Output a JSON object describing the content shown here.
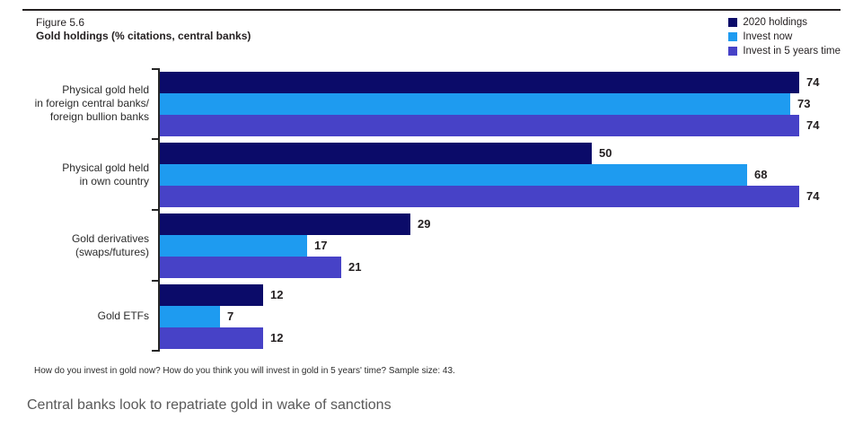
{
  "figure": {
    "label": "Figure 5.6",
    "title": "Gold holdings (% citations, central banks)"
  },
  "legend": [
    {
      "label": "2020 holdings",
      "color": "#0B0B69"
    },
    {
      "label": "Invest now",
      "color": "#1E9BF0"
    },
    {
      "label": "Invest in 5 years time",
      "color": "#4742C7"
    }
  ],
  "chart_data": {
    "type": "bar",
    "orientation": "horizontal",
    "title": "Gold holdings (% citations, central banks)",
    "categories": [
      "Physical gold held\nin foreign central banks/\nforeign bullion banks",
      "Physical gold held\nin own country",
      "Gold derivatives\n(swaps/futures)",
      "Gold ETFs"
    ],
    "series": [
      {
        "name": "2020 holdings",
        "color": "#0B0B69",
        "values": [
          74,
          50,
          29,
          12
        ]
      },
      {
        "name": "Invest now",
        "color": "#1E9BF0",
        "values": [
          73,
          68,
          17,
          7
        ]
      },
      {
        "name": "Invest in 5 years time",
        "color": "#4742C7",
        "values": [
          74,
          74,
          21,
          12
        ]
      }
    ],
    "xlim": [
      0,
      78
    ],
    "value_labels": true,
    "grid": false,
    "legend_position": "top-right"
  },
  "footnote": "How do you invest in gold now? How do you think you will invest in gold in 5 years' time? Sample size: 43.",
  "caption": "Central banks look to repatriate gold in wake of sanctions"
}
